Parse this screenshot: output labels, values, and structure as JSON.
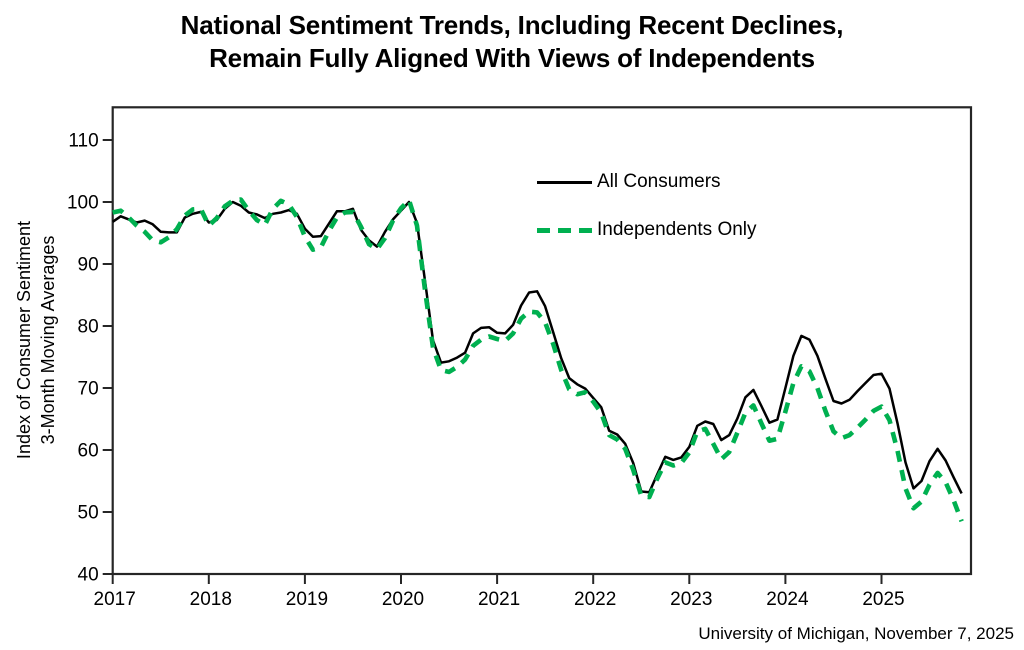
{
  "figure": {
    "title_line1": "National Sentiment Trends, Including Recent Declines,",
    "title_line2": "Remain Fully Aligned With Views of Independents",
    "ylabel_line1": "Index of Consumer Sentiment",
    "ylabel_line2": "3-Month Moving Averages",
    "source": "University of Michigan, November 7, 2025"
  },
  "legend": {
    "all_consumers": "All Consumers",
    "independents": "Independents Only"
  },
  "colors": {
    "all_consumers_line": "#000000",
    "independents_line": "#00b050",
    "frame": "#262626"
  },
  "chart_data": {
    "type": "line",
    "title": "National Sentiment Trends, Including Recent Declines, Remain Fully Aligned With Views of Independents",
    "xlabel": "",
    "ylabel": "Index of Consumer Sentiment 3-Month Moving Averages",
    "grid": false,
    "legend_position": "upper right inside plot",
    "ylim": [
      40,
      115.3
    ],
    "y_ticks": [
      40,
      50,
      60,
      70,
      80,
      90,
      100,
      110
    ],
    "x_tick_labels": [
      "2017",
      "2018",
      "2019",
      "2020",
      "2021",
      "2022",
      "2023",
      "2024",
      "2025"
    ],
    "frequency": "monthly",
    "x_start": "2017-01",
    "x_end": "2025-11",
    "series": [
      {
        "name": "All Consumers",
        "style": "solid",
        "color": "#000000",
        "values": [
          96.8,
          97.7,
          97.2,
          96.7,
          97.0,
          96.4,
          95.2,
          95.1,
          95.1,
          97.5,
          98.1,
          98.4,
          96.7,
          97.1,
          98.9,
          100.0,
          99.4,
          98.3,
          98.0,
          97.4,
          98.1,
          98.3,
          98.7,
          98.1,
          95.7,
          94.4,
          94.5,
          96.5,
          98.5,
          98.5,
          98.9,
          95.5,
          93.8,
          92.8,
          95.2,
          97.2,
          98.6,
          100.0,
          96.6,
          87.3,
          77.7,
          74.1,
          74.3,
          74.9,
          75.7,
          78.8,
          79.7,
          79.8,
          78.9,
          78.8,
          80.2,
          83.3,
          85.4,
          85.6,
          83.2,
          79.0,
          74.8,
          71.6,
          70.6,
          69.9,
          68.4,
          66.9,
          63.1,
          62.5,
          61.0,
          57.9,
          53.3,
          53.2,
          56.1,
          58.9,
          58.4,
          58.8,
          60.5,
          63.9,
          64.6,
          64.2,
          61.6,
          62.4,
          65.1,
          68.5,
          69.7,
          67.1,
          64.4,
          64.9,
          70.0,
          75.2,
          78.4,
          77.8,
          75.2,
          71.5,
          67.9,
          67.5,
          68.1,
          69.5,
          70.8,
          72.1,
          72.3,
          69.9,
          64.3,
          58.0,
          53.8,
          55.0,
          58.2,
          60.2,
          58.3,
          55.6,
          53.0
        ]
      },
      {
        "name": "Independents Only",
        "style": "dashed",
        "color": "#00b050",
        "values": [
          98.3,
          98.6,
          97.5,
          96.2,
          95.2,
          93.8,
          93.5,
          94.3,
          95.6,
          97.8,
          98.8,
          98.9,
          96.2,
          97.4,
          99.3,
          100.2,
          100.4,
          98.6,
          97.1,
          96.3,
          98.9,
          100.2,
          99.6,
          97.6,
          94.4,
          92.3,
          92.7,
          95.3,
          97.5,
          98.3,
          98.4,
          96.0,
          93.2,
          92.4,
          94.2,
          97.0,
          99.0,
          100.3,
          96.2,
          85.8,
          76.5,
          72.9,
          72.6,
          73.4,
          74.6,
          76.8,
          77.8,
          78.3,
          77.9,
          77.6,
          78.8,
          81.2,
          82.3,
          82.2,
          80.6,
          77.1,
          72.9,
          69.8,
          69.0,
          69.3,
          67.8,
          66.0,
          62.4,
          61.7,
          60.2,
          56.8,
          52.6,
          52.4,
          55.4,
          58.0,
          57.5,
          57.9,
          59.6,
          63.0,
          63.4,
          61.0,
          58.5,
          59.7,
          62.8,
          66.0,
          67.2,
          64.3,
          61.5,
          61.8,
          66.2,
          70.8,
          73.5,
          72.7,
          70.0,
          66.3,
          63.0,
          61.9,
          62.4,
          63.6,
          64.9,
          66.3,
          67.0,
          64.8,
          59.9,
          53.8,
          50.6,
          51.7,
          54.4,
          56.3,
          54.8,
          51.9,
          48.5
        ]
      }
    ]
  }
}
